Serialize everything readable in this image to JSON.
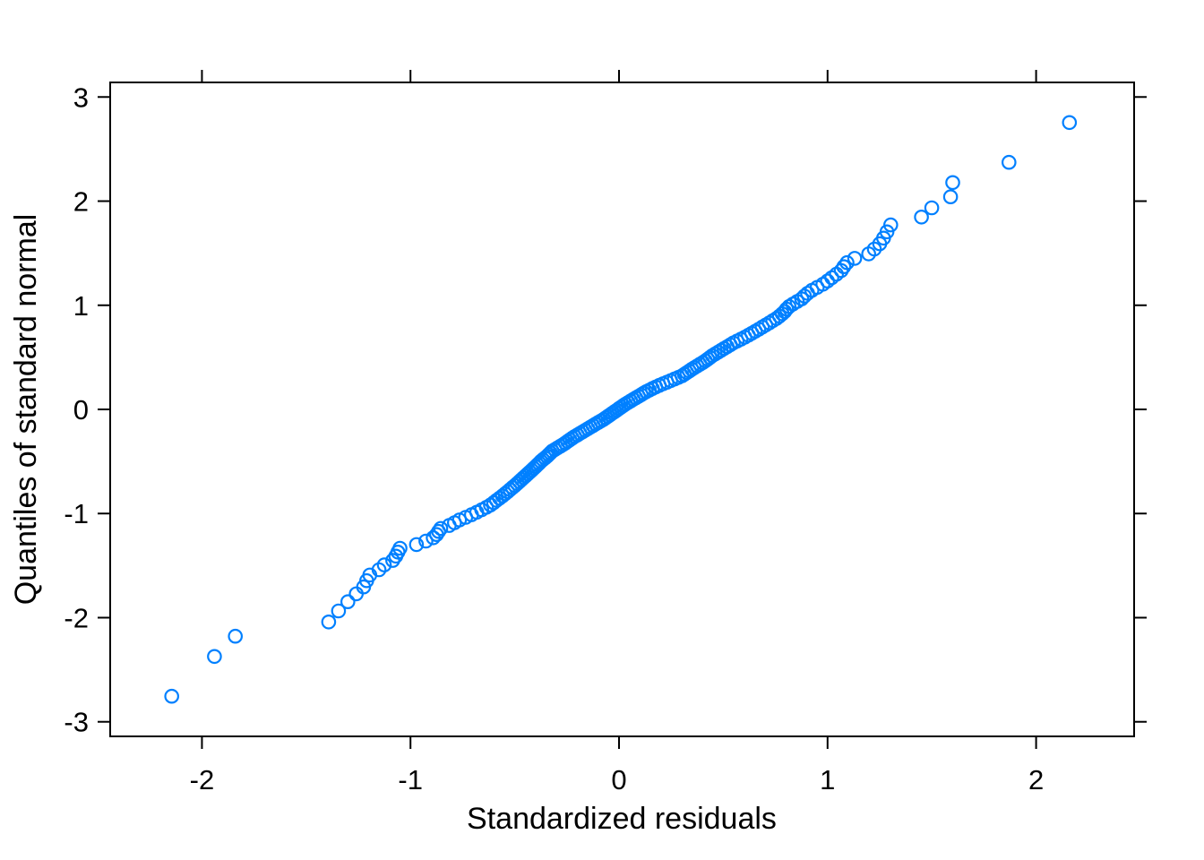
{
  "chart_data": {
    "type": "scatter",
    "title": "",
    "xlabel": "Standardized residuals",
    "ylabel": "Quantiles of standard normal",
    "xlim": [
      -2.44,
      2.47
    ],
    "ylim": [
      -3.14,
      3.14
    ],
    "x_ticks": [
      -2,
      -1,
      0,
      1,
      2
    ],
    "y_ticks": [
      -3,
      -2,
      -1,
      0,
      1,
      2,
      3
    ],
    "grid": false,
    "legend_position": "none",
    "background_color": "#FFFFFF",
    "axis_color": "#000000",
    "marker_shape": "open-circle",
    "marker_color": "#0080FF",
    "n_points": 170,
    "quantile_rule": "y[i] = qnorm((i - 0.5) / 170), i = 1..170",
    "qq_curve": [
      [
        -2.145,
        -2.754
      ],
      [
        -1.94,
        -2.373
      ],
      [
        -1.84,
        -2.178
      ],
      [
        -1.39,
        -2.041
      ],
      [
        -1.345,
        -1.935
      ],
      [
        -1.3,
        -1.847
      ],
      [
        -1.26,
        -1.772
      ],
      [
        -1.225,
        -1.706
      ],
      [
        -1.21,
        -1.645
      ],
      [
        -1.195,
        -1.59
      ],
      [
        -1.15,
        -1.539
      ],
      [
        -1.125,
        -1.493
      ],
      [
        -1.085,
        -1.45
      ],
      [
        -1.07,
        -1.409
      ],
      [
        -1.06,
        -1.37
      ],
      [
        -1.05,
        -1.333
      ],
      [
        -0.97,
        -1.298
      ],
      [
        -0.925,
        -1.264
      ],
      [
        -0.89,
        -1.232
      ],
      [
        -0.875,
        -1.202
      ],
      [
        -0.865,
        -1.172
      ],
      [
        -0.855,
        -1.143
      ],
      [
        -0.815,
        -1.116
      ],
      [
        -0.79,
        -1.089
      ],
      [
        -0.765,
        -1.062
      ],
      [
        -0.735,
        -1.036
      ],
      [
        -0.7,
        -1.005
      ],
      [
        -0.67,
        -0.975
      ],
      [
        -0.64,
        -0.945
      ],
      [
        -0.61,
        -0.91
      ],
      [
        -0.585,
        -0.87
      ],
      [
        -0.555,
        -0.825
      ],
      [
        -0.525,
        -0.775
      ],
      [
        -0.49,
        -0.715
      ],
      [
        -0.46,
        -0.66
      ],
      [
        -0.43,
        -0.605
      ],
      [
        -0.4,
        -0.55
      ],
      [
        -0.37,
        -0.49
      ],
      [
        -0.345,
        -0.45
      ],
      [
        -0.32,
        -0.4
      ],
      [
        -0.27,
        -0.34
      ],
      [
        -0.22,
        -0.27
      ],
      [
        -0.17,
        -0.21
      ],
      [
        -0.12,
        -0.15
      ],
      [
        -0.07,
        -0.09
      ],
      [
        -0.02,
        -0.02
      ],
      [
        0.03,
        0.05
      ],
      [
        0.08,
        0.11
      ],
      [
        0.13,
        0.17
      ],
      [
        0.18,
        0.22
      ],
      [
        0.24,
        0.27
      ],
      [
        0.3,
        0.32
      ],
      [
        0.36,
        0.4
      ],
      [
        0.41,
        0.46
      ],
      [
        0.45,
        0.52
      ],
      [
        0.5,
        0.58
      ],
      [
        0.55,
        0.64
      ],
      [
        0.61,
        0.7
      ],
      [
        0.67,
        0.77
      ],
      [
        0.72,
        0.83
      ],
      [
        0.76,
        0.88
      ],
      [
        0.79,
        0.93
      ],
      [
        0.81,
        0.98
      ],
      [
        0.84,
        1.02
      ],
      [
        0.875,
        1.06
      ],
      [
        0.9,
        1.11
      ],
      [
        0.93,
        1.15
      ],
      [
        0.985,
        1.21
      ],
      [
        1.03,
        1.28
      ],
      [
        1.07,
        1.34
      ],
      [
        1.085,
        1.4
      ],
      [
        1.13,
        1.45
      ],
      [
        1.195,
        1.49
      ],
      [
        1.23,
        1.55
      ],
      [
        1.25,
        1.59
      ],
      [
        1.27,
        1.65
      ],
      [
        1.285,
        1.706
      ],
      [
        1.3,
        1.77
      ],
      [
        1.45,
        1.847
      ],
      [
        1.5,
        1.936
      ],
      [
        1.59,
        2.042
      ],
      [
        1.6,
        2.178
      ],
      [
        1.87,
        2.373
      ],
      [
        2.16,
        2.754
      ]
    ]
  }
}
